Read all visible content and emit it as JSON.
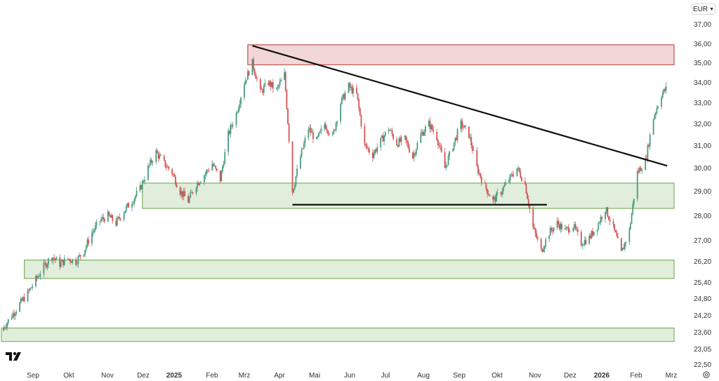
{
  "currency_selector": {
    "label": "EUR",
    "icon": "chevron-down-icon"
  },
  "settings": {
    "icon": "gear-icon"
  },
  "logo": {
    "name": "tradingview-logo"
  },
  "colors": {
    "up": "#4a9a7f",
    "down": "#d35454",
    "resistance_fill": "#f2d7d7",
    "resistance_stroke": "#c0504d",
    "support_fill": "#e1eedb",
    "support_stroke": "#7db25f",
    "trendline": "#111111"
  },
  "chart_data": {
    "type": "candlestick",
    "y_axis": {
      "position": "right",
      "scale": "log",
      "ticks": [
        "37,00",
        "36,00",
        "35,00",
        "34,00",
        "33,00",
        "32,00",
        "31,00",
        "30,00",
        "29,00",
        "28,00",
        "27,00",
        "26,20",
        "25,40",
        "24,80",
        "24,20",
        "23,60",
        "23,05",
        "22,50"
      ],
      "range": [
        22.5,
        37.5
      ]
    },
    "x_axis": {
      "ticks": [
        {
          "label": "Sep",
          "bold": false
        },
        {
          "label": "Okt",
          "bold": false
        },
        {
          "label": "Nov",
          "bold": false
        },
        {
          "label": "Dez",
          "bold": false
        },
        {
          "label": "2025",
          "bold": true
        },
        {
          "label": "Feb",
          "bold": false
        },
        {
          "label": "Mrz",
          "bold": false
        },
        {
          "label": "Apr",
          "bold": false
        },
        {
          "label": "Mai",
          "bold": false
        },
        {
          "label": "Jun",
          "bold": false
        },
        {
          "label": "Jul",
          "bold": false
        },
        {
          "label": "Aug",
          "bold": false
        },
        {
          "label": "Sep",
          "bold": false
        },
        {
          "label": "Okt",
          "bold": false
        },
        {
          "label": "Nov",
          "bold": false
        },
        {
          "label": "Dez",
          "bold": false
        },
        {
          "label": "2026",
          "bold": true
        },
        {
          "label": "Feb",
          "bold": false
        },
        {
          "label": "Mrz",
          "bold": false
        }
      ]
    },
    "zones": [
      {
        "kind": "resistance",
        "from": "2025-02-27",
        "to": "2026-03-06",
        "low": 34.9,
        "high": 35.95
      },
      {
        "kind": "support",
        "from": "2024-11-27",
        "to": "2026-03-06",
        "low": 28.3,
        "high": 29.35
      },
      {
        "kind": "support",
        "from": "2024-08-16",
        "to": "2026-03-06",
        "low": 25.55,
        "high": 26.25
      },
      {
        "kind": "support",
        "from": "2024-07-27",
        "to": "2026-03-06",
        "low": 23.3,
        "high": 23.75
      }
    ],
    "lines": [
      {
        "kind": "trendline",
        "from": {
          "date": "2025-03-03",
          "value": 35.9
        },
        "to": {
          "date": "2026-02-28",
          "value": 30.1
        }
      },
      {
        "kind": "horizontal",
        "from": {
          "date": "2025-04-07",
          "value": 28.45
        },
        "to": {
          "date": "2025-11-15",
          "value": 28.45
        }
      }
    ],
    "price_path": [
      [
        "2024-07-27",
        23.65
      ],
      [
        "2024-08-05",
        24.2
      ],
      [
        "2024-08-12",
        24.6
      ],
      [
        "2024-08-19",
        25.0
      ],
      [
        "2024-08-26",
        25.5
      ],
      [
        "2024-09-02",
        26.0
      ],
      [
        "2024-09-09",
        26.4
      ],
      [
        "2024-09-16",
        26.1
      ],
      [
        "2024-09-23",
        26.3
      ],
      [
        "2024-09-30",
        26.2
      ],
      [
        "2024-10-07",
        26.6
      ],
      [
        "2024-10-14",
        27.3
      ],
      [
        "2024-10-21",
        27.8
      ],
      [
        "2024-10-28",
        28.0
      ],
      [
        "2024-11-04",
        27.7
      ],
      [
        "2024-11-11",
        28.2
      ],
      [
        "2024-11-18",
        28.6
      ],
      [
        "2024-11-25",
        29.1
      ],
      [
        "2024-12-02",
        30.0
      ],
      [
        "2024-12-09",
        30.7
      ],
      [
        "2024-12-16",
        30.2
      ],
      [
        "2024-12-23",
        29.8
      ],
      [
        "2024-12-30",
        29.0
      ],
      [
        "2025-01-06",
        28.6
      ],
      [
        "2025-01-13",
        29.3
      ],
      [
        "2025-01-20",
        29.7
      ],
      [
        "2025-01-27",
        30.2
      ],
      [
        "2025-02-03",
        29.5
      ],
      [
        "2025-02-10",
        31.5
      ],
      [
        "2025-02-17",
        32.5
      ],
      [
        "2025-02-24",
        34.0
      ],
      [
        "2025-03-03",
        35.0
      ],
      [
        "2025-03-10",
        33.5
      ],
      [
        "2025-03-17",
        34.0
      ],
      [
        "2025-03-24",
        33.6
      ],
      [
        "2025-03-31",
        34.4
      ],
      [
        "2025-04-07",
        29.0
      ],
      [
        "2025-04-14",
        30.5
      ],
      [
        "2025-04-21",
        31.8
      ],
      [
        "2025-04-28",
        31.2
      ],
      [
        "2025-05-05",
        32.0
      ],
      [
        "2025-05-12",
        31.4
      ],
      [
        "2025-05-19",
        33.0
      ],
      [
        "2025-05-26",
        33.8
      ],
      [
        "2025-06-02",
        33.4
      ],
      [
        "2025-06-09",
        31.0
      ],
      [
        "2025-06-16",
        30.6
      ],
      [
        "2025-06-23",
        31.2
      ],
      [
        "2025-06-30",
        31.8
      ],
      [
        "2025-07-07",
        31.1
      ],
      [
        "2025-07-14",
        31.3
      ],
      [
        "2025-07-21",
        30.5
      ],
      [
        "2025-07-28",
        31.5
      ],
      [
        "2025-08-04",
        32.0
      ],
      [
        "2025-08-11",
        31.4
      ],
      [
        "2025-08-18",
        30.0
      ],
      [
        "2025-08-25",
        31.0
      ],
      [
        "2025-09-01",
        32.0
      ],
      [
        "2025-09-08",
        31.5
      ],
      [
        "2025-09-15",
        30.0
      ],
      [
        "2025-09-22",
        29.2
      ],
      [
        "2025-09-29",
        28.6
      ],
      [
        "2025-10-06",
        29.0
      ],
      [
        "2025-10-13",
        29.5
      ],
      [
        "2025-10-20",
        30.0
      ],
      [
        "2025-10-27",
        29.3
      ],
      [
        "2025-11-03",
        27.5
      ],
      [
        "2025-11-10",
        26.6
      ],
      [
        "2025-11-17",
        27.3
      ],
      [
        "2025-11-24",
        27.7
      ],
      [
        "2025-12-01",
        27.4
      ],
      [
        "2025-12-08",
        27.6
      ],
      [
        "2025-12-15",
        26.9
      ],
      [
        "2025-12-22",
        27.1
      ],
      [
        "2025-12-29",
        27.6
      ],
      [
        "2026-01-05",
        28.3
      ],
      [
        "2026-01-12",
        27.5
      ],
      [
        "2026-01-19",
        26.5
      ],
      [
        "2026-01-26",
        27.4
      ],
      [
        "2026-02-02",
        29.8
      ],
      [
        "2026-02-09",
        30.3
      ],
      [
        "2026-02-16",
        32.3
      ],
      [
        "2026-02-23",
        33.4
      ],
      [
        "2026-03-02",
        33.9
      ]
    ]
  }
}
